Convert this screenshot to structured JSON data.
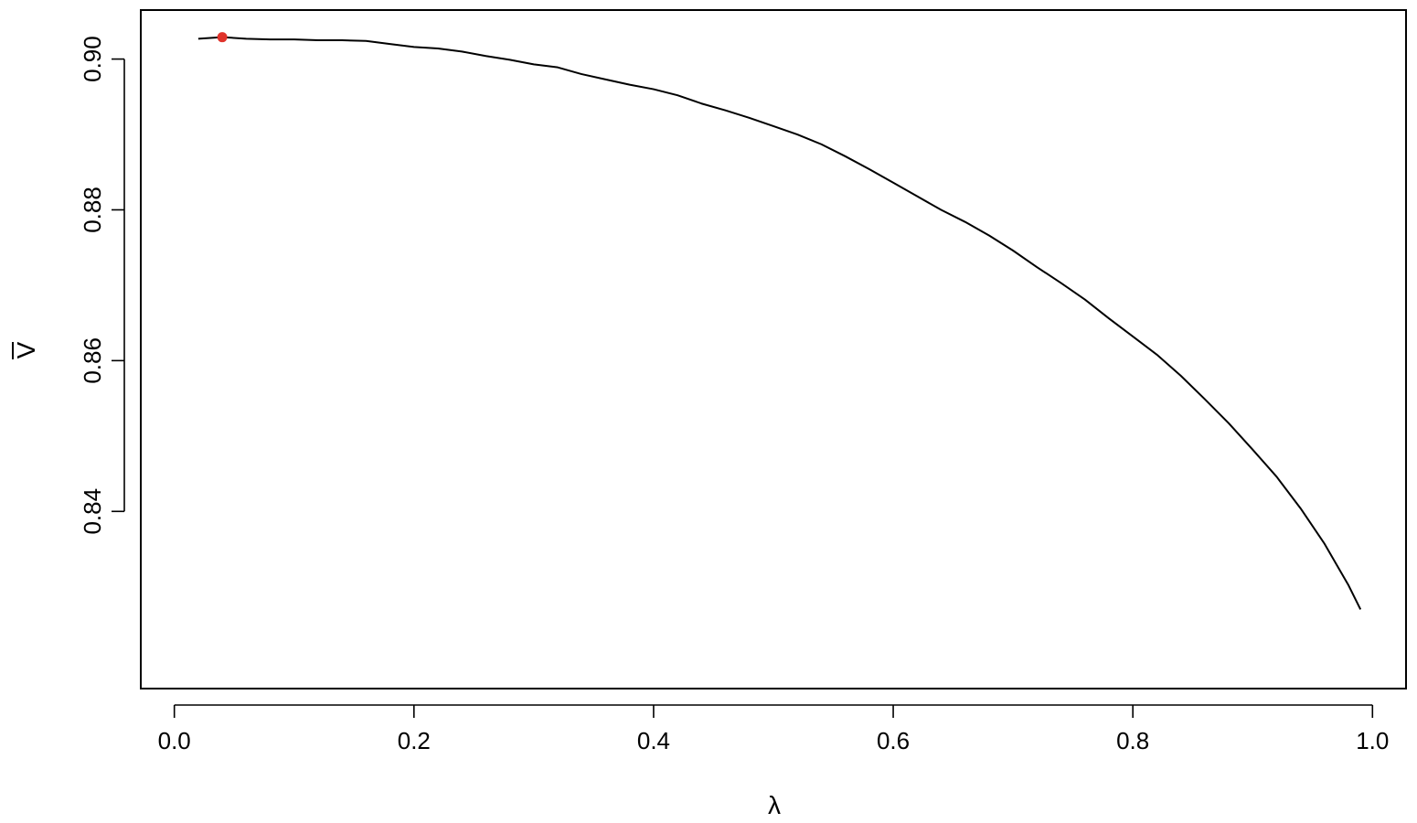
{
  "chart_data": {
    "type": "line",
    "title": "",
    "xlabel": "λ",
    "ylabel": "V",
    "ylabel_overbar": true,
    "xlim": [
      -0.028,
      1.028
    ],
    "ylim": [
      0.8165,
      0.9065
    ],
    "x_ticks": [
      0.0,
      0.2,
      0.4,
      0.6,
      0.8,
      1.0
    ],
    "x_tick_labels": [
      "0.0",
      "0.2",
      "0.4",
      "0.6",
      "0.8",
      "1.0"
    ],
    "y_ticks": [
      0.84,
      0.86,
      0.88,
      0.9
    ],
    "y_tick_labels": [
      "0.84",
      "0.86",
      "0.88",
      "0.90"
    ],
    "grid": false,
    "legend": "none",
    "line_color": "#000000",
    "highlight_color": "#e0332b",
    "series": [
      {
        "x": [
          0.02,
          0.04,
          0.06,
          0.08,
          0.1,
          0.12,
          0.14,
          0.16,
          0.18,
          0.2,
          0.22,
          0.24,
          0.26,
          0.28,
          0.3,
          0.32,
          0.34,
          0.36,
          0.38,
          0.4,
          0.42,
          0.44,
          0.46,
          0.48,
          0.5,
          0.52,
          0.54,
          0.56,
          0.58,
          0.6,
          0.62,
          0.64,
          0.66,
          0.68,
          0.7,
          0.72,
          0.74,
          0.76,
          0.78,
          0.8,
          0.82,
          0.84,
          0.86,
          0.88,
          0.9,
          0.92,
          0.94,
          0.96,
          0.98,
          0.99
        ],
        "values": [
          0.9027,
          0.9029,
          0.9027,
          0.9026,
          0.9026,
          0.9025,
          0.9025,
          0.9024,
          0.902,
          0.9016,
          0.9014,
          0.901,
          0.9004,
          0.8999,
          0.8993,
          0.8989,
          0.898,
          0.8973,
          0.8966,
          0.896,
          0.8952,
          0.8941,
          0.8932,
          0.8922,
          0.8911,
          0.89,
          0.8887,
          0.8871,
          0.8854,
          0.8836,
          0.8818,
          0.88,
          0.8784,
          0.8766,
          0.8746,
          0.8724,
          0.8703,
          0.8681,
          0.8656,
          0.8632,
          0.8608,
          0.858,
          0.8549,
          0.8517,
          0.8482,
          0.8446,
          0.8404,
          0.8357,
          0.8302,
          0.827
        ]
      }
    ],
    "highlight_point": {
      "x": 0.04,
      "y": 0.9029
    }
  }
}
